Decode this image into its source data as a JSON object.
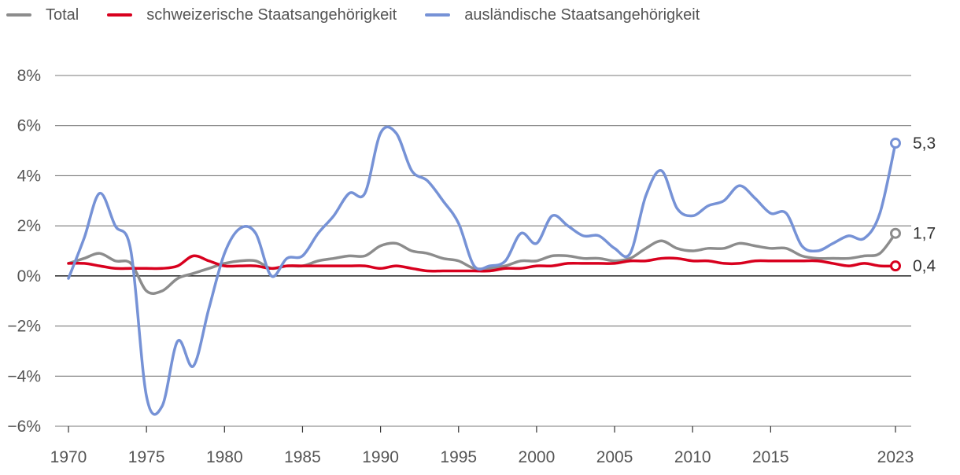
{
  "chart_data": {
    "type": "line",
    "title": "",
    "xlabel": "",
    "ylabel": "",
    "xlim": [
      1970,
      2023
    ],
    "ylim": [
      -6,
      8
    ],
    "ytick_values": [
      8,
      6,
      4,
      2,
      0,
      -2,
      -4,
      -6
    ],
    "ytick_labels": [
      "8%",
      "6%",
      "4%",
      "2%",
      "0%",
      "−2%",
      "−4%",
      "−6%"
    ],
    "xtick_values": [
      1970,
      1975,
      1980,
      1985,
      1990,
      1995,
      2000,
      2005,
      2010,
      2015,
      2023
    ],
    "xtick_labels": [
      "1970",
      "1975",
      "1980",
      "1985",
      "1990",
      "1995",
      "2000",
      "2005",
      "2010",
      "2015",
      "2023"
    ],
    "grid": "horizontal",
    "legend_position": "top-left",
    "x": [
      1970,
      1971,
      1972,
      1973,
      1974,
      1975,
      1976,
      1977,
      1978,
      1979,
      1980,
      1981,
      1982,
      1983,
      1984,
      1985,
      1986,
      1987,
      1988,
      1989,
      1990,
      1991,
      1992,
      1993,
      1994,
      1995,
      1996,
      1997,
      1998,
      1999,
      2000,
      2001,
      2002,
      2003,
      2004,
      2005,
      2006,
      2007,
      2008,
      2009,
      2010,
      2011,
      2012,
      2013,
      2014,
      2015,
      2016,
      2017,
      2018,
      2019,
      2020,
      2021,
      2022,
      2023
    ],
    "series": [
      {
        "name": "Total",
        "color": "#8c8c8c",
        "end_label": "1,7",
        "values": [
          0.5,
          0.7,
          0.9,
          0.6,
          0.5,
          -0.6,
          -0.6,
          -0.1,
          0.1,
          0.3,
          0.5,
          0.6,
          0.6,
          0.3,
          0.4,
          0.4,
          0.6,
          0.7,
          0.8,
          0.8,
          1.2,
          1.3,
          1.0,
          0.9,
          0.7,
          0.6,
          0.3,
          0.3,
          0.4,
          0.6,
          0.6,
          0.8,
          0.8,
          0.7,
          0.7,
          0.6,
          0.7,
          1.1,
          1.4,
          1.1,
          1.0,
          1.1,
          1.1,
          1.3,
          1.2,
          1.1,
          1.1,
          0.8,
          0.7,
          0.7,
          0.7,
          0.8,
          0.9,
          1.7
        ]
      },
      {
        "name": "schweizerische Staatsangehörigkeit",
        "color": "#d8001e",
        "end_label": "0,4",
        "values": [
          0.5,
          0.5,
          0.4,
          0.3,
          0.3,
          0.3,
          0.3,
          0.4,
          0.8,
          0.6,
          0.4,
          0.4,
          0.4,
          0.3,
          0.4,
          0.4,
          0.4,
          0.4,
          0.4,
          0.4,
          0.3,
          0.4,
          0.3,
          0.2,
          0.2,
          0.2,
          0.2,
          0.2,
          0.3,
          0.3,
          0.4,
          0.4,
          0.5,
          0.5,
          0.5,
          0.5,
          0.6,
          0.6,
          0.7,
          0.7,
          0.6,
          0.6,
          0.5,
          0.5,
          0.6,
          0.6,
          0.6,
          0.6,
          0.6,
          0.5,
          0.4,
          0.5,
          0.4,
          0.4
        ]
      },
      {
        "name": "ausländische Staatsangehörigkeit",
        "color": "#7692d6",
        "end_label": "5,3",
        "values": [
          -0.1,
          1.5,
          3.3,
          2.0,
          1.0,
          -4.8,
          -5.2,
          -2.6,
          -3.6,
          -1.3,
          0.9,
          1.9,
          1.7,
          0.0,
          0.7,
          0.8,
          1.7,
          2.4,
          3.3,
          3.3,
          5.7,
          5.7,
          4.2,
          3.8,
          3.0,
          2.1,
          0.4,
          0.4,
          0.6,
          1.7,
          1.3,
          2.4,
          2.0,
          1.6,
          1.6,
          1.1,
          0.9,
          3.2,
          4.2,
          2.7,
          2.4,
          2.8,
          3.0,
          3.6,
          3.1,
          2.5,
          2.5,
          1.2,
          1.0,
          1.3,
          1.6,
          1.5,
          2.5,
          5.3
        ]
      }
    ]
  }
}
